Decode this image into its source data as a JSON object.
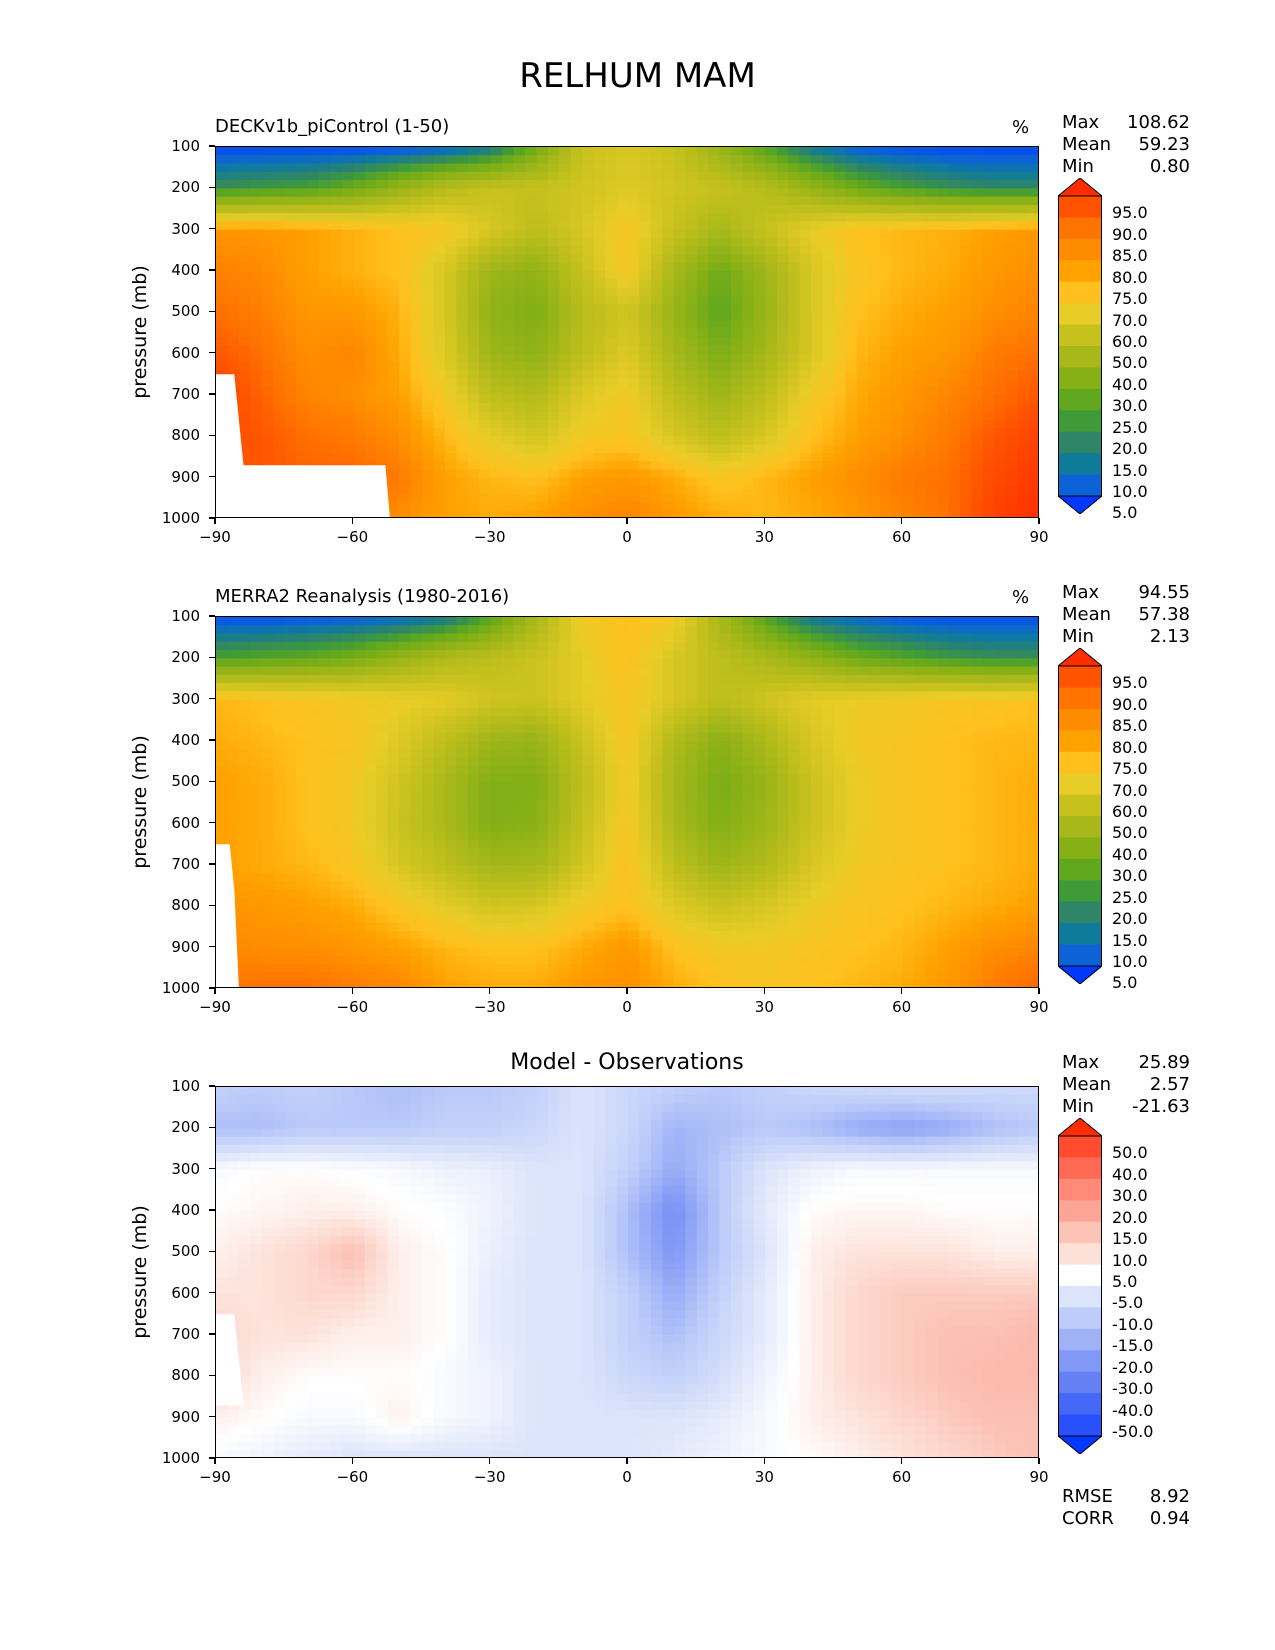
{
  "figure_title": "RELHUM MAM",
  "chart_data": [
    {
      "type": "heatmap",
      "title": "DECKv1b_piControl (1-50)",
      "units": "%",
      "xlabel": "",
      "ylabel": "pressure (mb)",
      "xlim": [
        -90,
        90
      ],
      "ylim": [
        1000,
        100
      ],
      "xticks": [
        "−90",
        "−60",
        "−30",
        "0",
        "30",
        "60",
        "90"
      ],
      "yticks": [
        "100",
        "200",
        "300",
        "400",
        "500",
        "600",
        "700",
        "800",
        "900",
        "1000"
      ],
      "stats": [
        {
          "label": "Max",
          "value": "108.62"
        },
        {
          "label": "Mean",
          "value": "59.23"
        },
        {
          "label": "Min",
          "value": "0.80"
        }
      ],
      "colorbar_labels": [
        "95.0",
        "90.0",
        "85.0",
        "80.0",
        "75.0",
        "70.0",
        "60.0",
        "50.0",
        "40.0",
        "30.0",
        "25.0",
        "20.0",
        "15.0",
        "10.0",
        "5.0"
      ],
      "colorbar_colors": [
        "#ff2d00",
        "#ff5300",
        "#ff7300",
        "#ff8c00",
        "#ffa200",
        "#ffc01e",
        "#e8cc27",
        "#c7c11e",
        "#a8b81a",
        "#86b016",
        "#62a81e",
        "#3f9b38",
        "#2f8567",
        "#0f7b9b",
        "#0d62d8",
        "#0038ff"
      ],
      "field": {
        "x": [
          -90,
          -80,
          -70,
          -60,
          -50,
          -40,
          -30,
          -20,
          -10,
          0,
          10,
          20,
          30,
          40,
          50,
          60,
          70,
          80,
          90
        ],
        "p": [
          100,
          200,
          300,
          400,
          500,
          600,
          700,
          800,
          900,
          1000
        ],
        "values": [
          [
            3,
            3,
            3,
            3,
            4,
            6,
            12,
            30,
            55,
            60,
            55,
            40,
            25,
            12,
            6,
            4,
            3,
            3,
            3
          ],
          [
            20,
            22,
            24,
            30,
            40,
            50,
            55,
            55,
            58,
            62,
            58,
            55,
            50,
            40,
            30,
            24,
            20,
            18,
            18
          ],
          [
            80,
            80,
            78,
            75,
            72,
            70,
            60,
            52,
            60,
            70,
            55,
            45,
            55,
            65,
            72,
            74,
            75,
            78,
            80
          ],
          [
            85,
            83,
            78,
            75,
            72,
            60,
            42,
            38,
            55,
            70,
            45,
            30,
            42,
            60,
            70,
            74,
            76,
            80,
            82
          ],
          [
            88,
            85,
            80,
            80,
            75,
            60,
            38,
            33,
            50,
            58,
            40,
            26,
            40,
            60,
            72,
            76,
            78,
            82,
            84
          ],
          [
            92,
            88,
            82,
            84,
            76,
            62,
            42,
            38,
            52,
            62,
            45,
            33,
            44,
            60,
            74,
            78,
            80,
            86,
            88
          ],
          [
            96,
            90,
            84,
            82,
            78,
            68,
            52,
            48,
            62,
            68,
            52,
            42,
            52,
            68,
            76,
            80,
            84,
            88,
            92
          ],
          [
            94,
            92,
            88,
            86,
            82,
            74,
            64,
            58,
            68,
            70,
            60,
            52,
            60,
            72,
            78,
            82,
            86,
            92,
            96
          ],
          [
            92,
            92,
            90,
            90,
            86,
            78,
            74,
            72,
            78,
            80,
            76,
            70,
            74,
            78,
            82,
            86,
            88,
            94,
            98
          ],
          [
            90,
            88,
            86,
            84,
            82,
            78,
            76,
            78,
            82,
            84,
            80,
            76,
            74,
            76,
            80,
            84,
            88,
            96,
            100
          ]
        ]
      },
      "masked_region": [
        [
          -90,
          650
        ],
        [
          -86,
          650
        ],
        [
          -84,
          870
        ],
        [
          -53,
          870
        ],
        [
          -52,
          1000
        ],
        [
          -90,
          1000
        ]
      ]
    },
    {
      "type": "heatmap",
      "title": "MERRA2 Reanalysis (1980-2016)",
      "units": "%",
      "xlabel": "",
      "ylabel": "pressure (mb)",
      "xlim": [
        -90,
        90
      ],
      "ylim": [
        1000,
        100
      ],
      "xticks": [
        "−90",
        "−60",
        "−30",
        "0",
        "30",
        "60",
        "90"
      ],
      "yticks": [
        "100",
        "200",
        "300",
        "400",
        "500",
        "600",
        "700",
        "800",
        "900",
        "1000"
      ],
      "stats": [
        {
          "label": "Max",
          "value": "94.55"
        },
        {
          "label": "Mean",
          "value": "57.38"
        },
        {
          "label": "Min",
          "value": "2.13"
        }
      ],
      "colorbar_labels": [
        "95.0",
        "90.0",
        "85.0",
        "80.0",
        "75.0",
        "70.0",
        "60.0",
        "50.0",
        "40.0",
        "30.0",
        "25.0",
        "20.0",
        "15.0",
        "10.0",
        "5.0"
      ],
      "colorbar_colors": [
        "#ff2d00",
        "#ff5300",
        "#ff7300",
        "#ff8c00",
        "#ffa200",
        "#ffc01e",
        "#e8cc27",
        "#c7c11e",
        "#a8b81a",
        "#86b016",
        "#62a81e",
        "#3f9b38",
        "#2f8567",
        "#0f7b9b",
        "#0d62d8",
        "#0038ff"
      ],
      "field": {
        "x": [
          -90,
          -80,
          -70,
          -60,
          -50,
          -40,
          -30,
          -20,
          -10,
          0,
          10,
          20,
          30,
          40,
          50,
          60,
          70,
          80,
          90
        ],
        "p": [
          100,
          200,
          300,
          400,
          500,
          600,
          700,
          800,
          900,
          1000
        ],
        "values": [
          [
            4,
            4,
            5,
            6,
            8,
            12,
            25,
            45,
            68,
            72,
            68,
            45,
            25,
            12,
            8,
            5,
            4,
            4,
            4
          ],
          [
            24,
            26,
            28,
            32,
            40,
            48,
            52,
            56,
            64,
            72,
            60,
            52,
            46,
            38,
            30,
            26,
            22,
            20,
            20
          ],
          [
            74,
            72,
            70,
            68,
            66,
            64,
            58,
            56,
            64,
            70,
            60,
            52,
            58,
            64,
            66,
            68,
            70,
            70,
            72
          ],
          [
            76,
            74,
            72,
            70,
            62,
            52,
            42,
            40,
            56,
            70,
            48,
            36,
            46,
            60,
            68,
            70,
            72,
            74,
            74
          ],
          [
            78,
            76,
            72,
            68,
            58,
            46,
            34,
            34,
            52,
            68,
            44,
            32,
            40,
            56,
            66,
            70,
            72,
            74,
            76
          ],
          [
            78,
            76,
            72,
            68,
            56,
            46,
            34,
            36,
            54,
            70,
            46,
            34,
            42,
            56,
            66,
            70,
            72,
            74,
            76
          ],
          [
            78,
            76,
            74,
            70,
            60,
            52,
            44,
            44,
            58,
            72,
            52,
            42,
            48,
            60,
            68,
            70,
            72,
            74,
            76
          ],
          [
            80,
            80,
            78,
            76,
            70,
            64,
            58,
            60,
            68,
            72,
            62,
            56,
            60,
            66,
            70,
            72,
            74,
            76,
            78
          ],
          [
            84,
            82,
            82,
            80,
            78,
            74,
            72,
            72,
            76,
            80,
            72,
            68,
            68,
            70,
            72,
            74,
            78,
            82,
            84
          ],
          [
            86,
            88,
            88,
            86,
            84,
            78,
            76,
            76,
            80,
            82,
            76,
            72,
            70,
            72,
            74,
            76,
            80,
            86,
            90
          ]
        ]
      },
      "masked_region": [
        [
          -90,
          650
        ],
        [
          -87,
          650
        ],
        [
          -86,
          760
        ],
        [
          -85,
          1000
        ],
        [
          -90,
          1000
        ]
      ]
    },
    {
      "type": "heatmap",
      "title": "Model - Observations",
      "units": "",
      "xlabel": "",
      "ylabel": "pressure (mb)",
      "xlim": [
        -90,
        90
      ],
      "ylim": [
        1000,
        100
      ],
      "xticks": [
        "−90",
        "−60",
        "−30",
        "0",
        "30",
        "60",
        "90"
      ],
      "yticks": [
        "100",
        "200",
        "300",
        "400",
        "500",
        "600",
        "700",
        "800",
        "900",
        "1000"
      ],
      "stats": [
        {
          "label": "Max",
          "value": "25.89"
        },
        {
          "label": "Mean",
          "value": "2.57"
        },
        {
          "label": "Min",
          "value": "-21.63"
        }
      ],
      "extra_stats": [
        {
          "label": "RMSE",
          "value": "8.92"
        },
        {
          "label": "CORR",
          "value": "0.94"
        }
      ],
      "colorbar_labels": [
        "50.0",
        "40.0",
        "30.0",
        "20.0",
        "15.0",
        "10.0",
        "5.0",
        "-5.0",
        "-10.0",
        "-15.0",
        "-20.0",
        "-30.0",
        "-40.0",
        "-50.0"
      ],
      "colorbar_colors": [
        "#ff2d00",
        "#ff4b2e",
        "#ff6a55",
        "#ff8a78",
        "#fca596",
        "#fcc2b6",
        "#fde0d8",
        "#ffffff",
        "#dce4fb",
        "#bccbf9",
        "#9fb2f7",
        "#8199f5",
        "#6480f3",
        "#4468f7",
        "#2a50fb",
        "#0038ff"
      ],
      "field": {
        "x": [
          -90,
          -80,
          -70,
          -60,
          -50,
          -40,
          -30,
          -20,
          -10,
          0,
          10,
          20,
          30,
          40,
          50,
          60,
          70,
          80,
          90
        ],
        "p": [
          100,
          200,
          300,
          400,
          500,
          600,
          700,
          800,
          900,
          1000
        ],
        "values": [
          [
            -6,
            -7,
            -6,
            -8,
            -10,
            -8,
            -8,
            -6,
            0,
            -4,
            -6,
            -8,
            -6,
            -4,
            -3,
            -2,
            -2,
            -3,
            -3
          ],
          [
            -10,
            -10,
            -8,
            -8,
            -8,
            -6,
            -6,
            -4,
            0,
            -4,
            -12,
            -10,
            -8,
            -10,
            -14,
            -16,
            -14,
            -10,
            -8
          ],
          [
            6,
            8,
            8,
            7,
            6,
            4,
            3,
            0,
            0,
            -6,
            -14,
            -8,
            0,
            4,
            6,
            6,
            6,
            6,
            6
          ],
          [
            8,
            9,
            10,
            10,
            8,
            7,
            4,
            0,
            0,
            -10,
            -20,
            -8,
            2,
            8,
            9,
            9,
            8,
            8,
            8
          ],
          [
            10,
            12,
            14,
            18,
            10,
            8,
            3,
            0,
            0,
            -10,
            -18,
            -8,
            0,
            10,
            12,
            12,
            12,
            10,
            10
          ],
          [
            12,
            12,
            14,
            14,
            10,
            8,
            2,
            0,
            0,
            -6,
            -14,
            -6,
            2,
            10,
            14,
            16,
            16,
            16,
            16
          ],
          [
            14,
            12,
            12,
            10,
            10,
            8,
            2,
            0,
            0,
            -6,
            -10,
            -4,
            2,
            10,
            14,
            16,
            18,
            18,
            20
          ],
          [
            14,
            10,
            8,
            8,
            8,
            6,
            4,
            0,
            0,
            -4,
            -6,
            -2,
            4,
            10,
            14,
            16,
            18,
            20,
            20
          ],
          [
            10,
            8,
            6,
            6,
            10,
            6,
            4,
            0,
            0,
            0,
            0,
            2,
            6,
            10,
            12,
            14,
            16,
            18,
            18
          ],
          [
            6,
            4,
            2,
            0,
            0,
            0,
            0,
            0,
            0,
            0,
            2,
            4,
            6,
            8,
            10,
            12,
            14,
            16,
            18
          ]
        ]
      },
      "masked_region": [
        [
          -90,
          650
        ],
        [
          -86,
          650
        ],
        [
          -84,
          870
        ],
        [
          -90,
          870
        ]
      ]
    }
  ]
}
